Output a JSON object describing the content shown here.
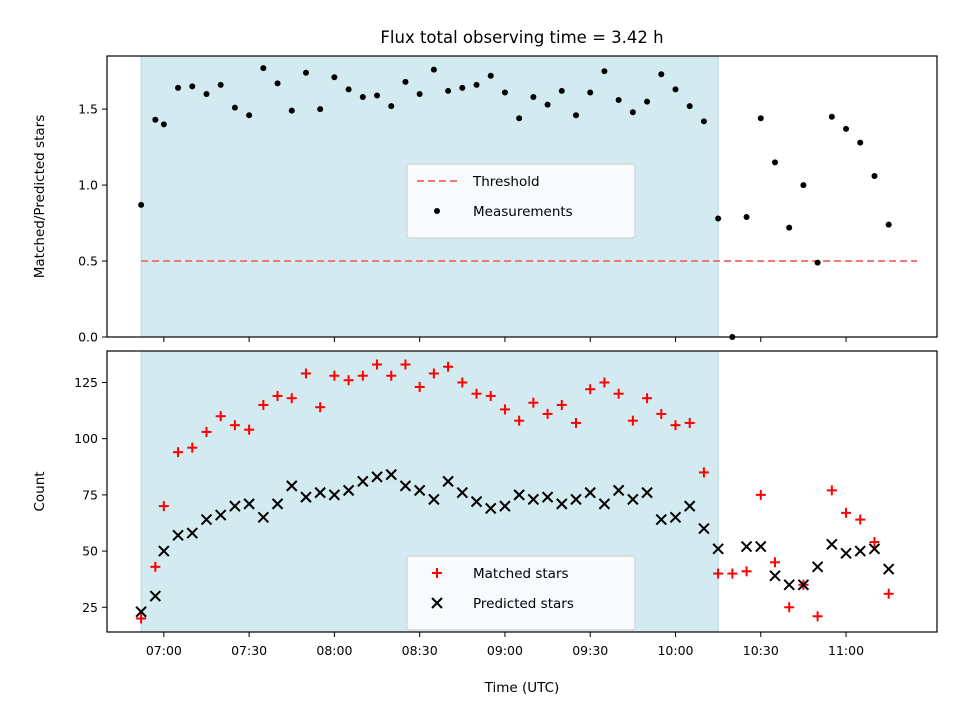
{
  "chart_data": {
    "type": "scatter",
    "title": "Flux total observing time = 3.42 h",
    "xlabel": "Time (UTC)",
    "x_ticks": [
      "07:00",
      "07:30",
      "08:00",
      "08:30",
      "09:00",
      "09:30",
      "10:00",
      "10:30",
      "11:00"
    ],
    "observing_window": {
      "start": "06:52",
      "end": "10:15",
      "color": "#d3eaf0"
    },
    "panels": [
      {
        "id": "ratio",
        "ylabel": "Matched/Predicted stars",
        "ylim": [
          0,
          1.85
        ],
        "y_ticks": [
          "0.0",
          "0.5",
          "1.0",
          "1.5"
        ],
        "legend_position": "center",
        "threshold": {
          "name": "Threshold",
          "value": 0.5,
          "x_range": [
            "06:52",
            "11:25"
          ],
          "color": "#f07878"
        },
        "series": [
          {
            "name": "Measurements",
            "marker": "dot",
            "color": "#000000",
            "points": [
              [
                "06:52",
                0.87
              ],
              [
                "06:57",
                1.43
              ],
              [
                "07:00",
                1.4
              ],
              [
                "07:05",
                1.64
              ],
              [
                "07:10",
                1.65
              ],
              [
                "07:15",
                1.6
              ],
              [
                "07:20",
                1.66
              ],
              [
                "07:25",
                1.51
              ],
              [
                "07:30",
                1.46
              ],
              [
                "07:35",
                1.77
              ],
              [
                "07:40",
                1.67
              ],
              [
                "07:45",
                1.49
              ],
              [
                "07:50",
                1.74
              ],
              [
                "07:55",
                1.5
              ],
              [
                "08:00",
                1.71
              ],
              [
                "08:05",
                1.63
              ],
              [
                "08:10",
                1.58
              ],
              [
                "08:15",
                1.59
              ],
              [
                "08:20",
                1.52
              ],
              [
                "08:25",
                1.68
              ],
              [
                "08:30",
                1.6
              ],
              [
                "08:35",
                1.76
              ],
              [
                "08:40",
                1.62
              ],
              [
                "08:45",
                1.64
              ],
              [
                "08:50",
                1.66
              ],
              [
                "08:55",
                1.72
              ],
              [
                "09:00",
                1.61
              ],
              [
                "09:05",
                1.44
              ],
              [
                "09:10",
                1.58
              ],
              [
                "09:15",
                1.53
              ],
              [
                "09:20",
                1.62
              ],
              [
                "09:25",
                1.46
              ],
              [
                "09:30",
                1.61
              ],
              [
                "09:35",
                1.75
              ],
              [
                "09:40",
                1.56
              ],
              [
                "09:45",
                1.48
              ],
              [
                "09:50",
                1.55
              ],
              [
                "09:55",
                1.73
              ],
              [
                "10:00",
                1.63
              ],
              [
                "10:05",
                1.52
              ],
              [
                "10:10",
                1.42
              ],
              [
                "10:15",
                0.78
              ],
              [
                "10:20",
                0.0
              ],
              [
                "10:25",
                0.79
              ],
              [
                "10:30",
                1.44
              ],
              [
                "10:35",
                1.15
              ],
              [
                "10:40",
                0.72
              ],
              [
                "10:45",
                1.0
              ],
              [
                "10:50",
                0.49
              ],
              [
                "10:55",
                1.45
              ],
              [
                "11:00",
                1.37
              ],
              [
                "11:05",
                1.28
              ],
              [
                "11:10",
                1.06
              ],
              [
                "11:15",
                0.74
              ]
            ]
          }
        ]
      },
      {
        "id": "counts",
        "ylabel": "Count",
        "ylim": [
          14,
          139
        ],
        "y_ticks": [
          "25",
          "50",
          "75",
          "100",
          "125"
        ],
        "legend_position": "lower center",
        "series": [
          {
            "name": "Matched stars",
            "marker": "plus",
            "color": "#ff0000",
            "points": [
              [
                "06:52",
                20
              ],
              [
                "06:57",
                43
              ],
              [
                "07:00",
                70
              ],
              [
                "07:05",
                94
              ],
              [
                "07:10",
                96
              ],
              [
                "07:15",
                103
              ],
              [
                "07:20",
                110
              ],
              [
                "07:25",
                106
              ],
              [
                "07:30",
                104
              ],
              [
                "07:35",
                115
              ],
              [
                "07:40",
                119
              ],
              [
                "07:45",
                118
              ],
              [
                "07:50",
                129
              ],
              [
                "07:55",
                114
              ],
              [
                "08:00",
                128
              ],
              [
                "08:05",
                126
              ],
              [
                "08:10",
                128
              ],
              [
                "08:15",
                133
              ],
              [
                "08:20",
                128
              ],
              [
                "08:25",
                133
              ],
              [
                "08:30",
                123
              ],
              [
                "08:35",
                129
              ],
              [
                "08:40",
                132
              ],
              [
                "08:45",
                125
              ],
              [
                "08:50",
                120
              ],
              [
                "08:55",
                119
              ],
              [
                "09:00",
                113
              ],
              [
                "09:05",
                108
              ],
              [
                "09:10",
                116
              ],
              [
                "09:15",
                111
              ],
              [
                "09:20",
                115
              ],
              [
                "09:25",
                107
              ],
              [
                "09:30",
                122
              ],
              [
                "09:35",
                125
              ],
              [
                "09:40",
                120
              ],
              [
                "09:45",
                108
              ],
              [
                "09:50",
                118
              ],
              [
                "09:55",
                111
              ],
              [
                "10:00",
                106
              ],
              [
                "10:05",
                107
              ],
              [
                "10:10",
                85
              ],
              [
                "10:15",
                40
              ],
              [
                "10:20",
                40
              ],
              [
                "10:25",
                41
              ],
              [
                "10:30",
                75
              ],
              [
                "10:35",
                45
              ],
              [
                "10:40",
                25
              ],
              [
                "10:45",
                35
              ],
              [
                "10:50",
                21
              ],
              [
                "10:55",
                77
              ],
              [
                "11:00",
                67
              ],
              [
                "11:05",
                64
              ],
              [
                "11:10",
                54
              ],
              [
                "11:15",
                31
              ]
            ]
          },
          {
            "name": "Predicted stars",
            "marker": "x",
            "color": "#000000",
            "points": [
              [
                "06:52",
                23
              ],
              [
                "06:57",
                30
              ],
              [
                "07:00",
                50
              ],
              [
                "07:05",
                57
              ],
              [
                "07:10",
                58
              ],
              [
                "07:15",
                64
              ],
              [
                "07:20",
                66
              ],
              [
                "07:25",
                70
              ],
              [
                "07:30",
                71
              ],
              [
                "07:35",
                65
              ],
              [
                "07:40",
                71
              ],
              [
                "07:45",
                79
              ],
              [
                "07:50",
                74
              ],
              [
                "07:55",
                76
              ],
              [
                "08:00",
                75
              ],
              [
                "08:05",
                77
              ],
              [
                "08:10",
                81
              ],
              [
                "08:15",
                83
              ],
              [
                "08:20",
                84
              ],
              [
                "08:25",
                79
              ],
              [
                "08:30",
                77
              ],
              [
                "08:35",
                73
              ],
              [
                "08:40",
                81
              ],
              [
                "08:45",
                76
              ],
              [
                "08:50",
                72
              ],
              [
                "08:55",
                69
              ],
              [
                "09:00",
                70
              ],
              [
                "09:05",
                75
              ],
              [
                "09:10",
                73
              ],
              [
                "09:15",
                74
              ],
              [
                "09:20",
                71
              ],
              [
                "09:25",
                73
              ],
              [
                "09:30",
                76
              ],
              [
                "09:35",
                71
              ],
              [
                "09:40",
                77
              ],
              [
                "09:45",
                73
              ],
              [
                "09:50",
                76
              ],
              [
                "09:55",
                64
              ],
              [
                "10:00",
                65
              ],
              [
                "10:05",
                70
              ],
              [
                "10:10",
                60
              ],
              [
                "10:15",
                51
              ],
              [
                "10:25",
                52
              ],
              [
                "10:30",
                52
              ],
              [
                "10:35",
                39
              ],
              [
                "10:40",
                35
              ],
              [
                "10:45",
                35
              ],
              [
                "10:50",
                43
              ],
              [
                "10:55",
                53
              ],
              [
                "11:00",
                49
              ],
              [
                "11:05",
                50
              ],
              [
                "11:10",
                51
              ],
              [
                "11:15",
                42
              ]
            ]
          }
        ]
      }
    ]
  }
}
